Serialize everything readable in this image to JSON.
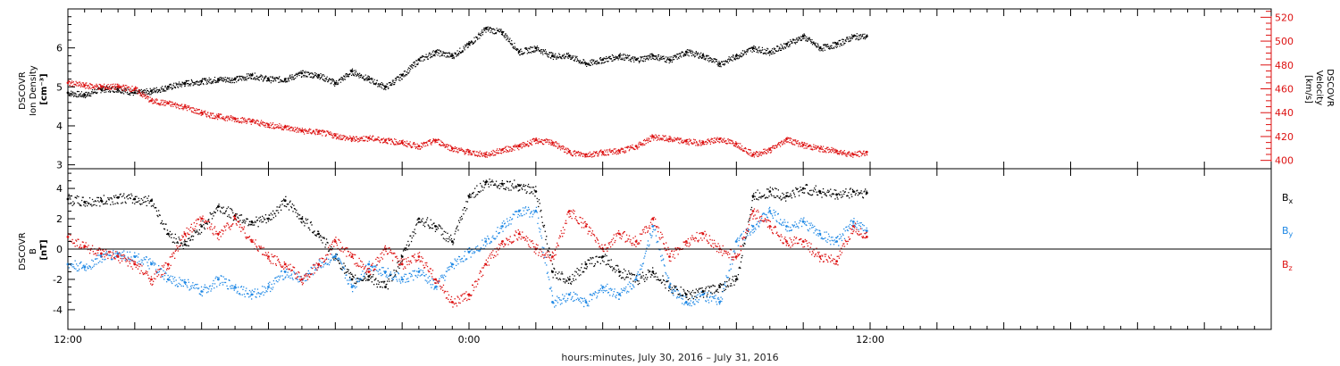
{
  "colors": {
    "black": "#000000",
    "red": "#dd1111",
    "blue": "#1e88e5",
    "frame": "#000000"
  },
  "xaxis": {
    "label": "hours:minutes, July 30, 2016 – July 31, 2016",
    "range_hours": [
      12,
      48
    ],
    "tick_labels": [
      {
        "hour": 12,
        "text": "12:00"
      },
      {
        "hour": 24,
        "text": "0:00"
      },
      {
        "hour": 36,
        "text": "12:00"
      }
    ],
    "major_step_hours": 2,
    "data_end_hour": 36
  },
  "panel_top": {
    "left_label": [
      "DSCOVR",
      "Ion Density",
      "[cm⁻³]"
    ],
    "right_label": [
      "DSCOVR",
      "Velocity",
      "[km/s]"
    ]
  },
  "panel_bottom": {
    "left_label": [
      "DSCOVR",
      "B",
      "[nT]"
    ],
    "legend": [
      {
        "name": "Bx",
        "main": "B",
        "sub": "x",
        "color": "#000000"
      },
      {
        "name": "By",
        "main": "B",
        "sub": "y",
        "color": "#1e88e5"
      },
      {
        "name": "Bz",
        "main": "B",
        "sub": "z",
        "color": "#dd1111"
      }
    ]
  },
  "chart_data": [
    {
      "type": "scatter",
      "y_left": {
        "range": [
          2.9,
          7.0
        ],
        "ticks": [
          3,
          4,
          5,
          6
        ]
      },
      "y_right": {
        "range": [
          393,
          527
        ],
        "ticks": [
          400,
          420,
          440,
          460,
          480,
          500,
          520
        ]
      },
      "series": [
        {
          "axis": "left",
          "color": "#000000",
          "points": [
            [
              12.0,
              4.85
            ],
            [
              12.5,
              4.8
            ],
            [
              13.0,
              4.95
            ],
            [
              13.5,
              4.95
            ],
            [
              14.0,
              4.85
            ],
            [
              14.5,
              4.9
            ],
            [
              15.0,
              5.0
            ],
            [
              15.5,
              5.1
            ],
            [
              16.0,
              5.15
            ],
            [
              16.5,
              5.2
            ],
            [
              17.0,
              5.2
            ],
            [
              17.5,
              5.3
            ],
            [
              18.0,
              5.2
            ],
            [
              18.5,
              5.2
            ],
            [
              19.0,
              5.35
            ],
            [
              19.5,
              5.3
            ],
            [
              20.0,
              5.1
            ],
            [
              20.5,
              5.4
            ],
            [
              21.0,
              5.2
            ],
            [
              21.5,
              5.0
            ],
            [
              22.0,
              5.3
            ],
            [
              22.5,
              5.7
            ],
            [
              23.0,
              5.9
            ],
            [
              23.5,
              5.8
            ],
            [
              24.0,
              6.1
            ],
            [
              24.5,
              6.5
            ],
            [
              25.0,
              6.4
            ],
            [
              25.5,
              5.9
            ],
            [
              26.0,
              6.0
            ],
            [
              26.5,
              5.8
            ],
            [
              27.0,
              5.8
            ],
            [
              27.5,
              5.6
            ],
            [
              28.0,
              5.7
            ],
            [
              28.5,
              5.8
            ],
            [
              29.0,
              5.7
            ],
            [
              29.5,
              5.8
            ],
            [
              30.0,
              5.7
            ],
            [
              30.5,
              5.9
            ],
            [
              31.0,
              5.8
            ],
            [
              31.5,
              5.6
            ],
            [
              32.0,
              5.8
            ],
            [
              32.5,
              6.0
            ],
            [
              33.0,
              5.9
            ],
            [
              33.5,
              6.1
            ],
            [
              34.0,
              6.3
            ],
            [
              34.5,
              6.0
            ],
            [
              35.0,
              6.1
            ],
            [
              35.5,
              6.3
            ],
            [
              35.9,
              6.3
            ]
          ]
        },
        {
          "axis": "right",
          "color": "#dd1111",
          "points": [
            [
              12.0,
              465
            ],
            [
              12.5,
              463
            ],
            [
              13.0,
              462
            ],
            [
              13.5,
              462
            ],
            [
              14.0,
              460
            ],
            [
              14.5,
              450
            ],
            [
              15.0,
              448
            ],
            [
              15.5,
              445
            ],
            [
              16.0,
              440
            ],
            [
              16.5,
              437
            ],
            [
              17.0,
              435
            ],
            [
              17.5,
              433
            ],
            [
              18.0,
              430
            ],
            [
              18.5,
              428
            ],
            [
              19.0,
              425
            ],
            [
              19.5,
              424
            ],
            [
              20.0,
              421
            ],
            [
              20.5,
              418
            ],
            [
              21.0,
              419
            ],
            [
              21.5,
              417
            ],
            [
              22.0,
              415
            ],
            [
              22.5,
              412
            ],
            [
              23.0,
              417
            ],
            [
              23.5,
              410
            ],
            [
              24.0,
              407
            ],
            [
              24.5,
              405
            ],
            [
              25.0,
              409
            ],
            [
              25.5,
              412
            ],
            [
              26.0,
              417
            ],
            [
              26.5,
              415
            ],
            [
              27.0,
              407
            ],
            [
              27.5,
              405
            ],
            [
              28.0,
              407
            ],
            [
              28.5,
              408
            ],
            [
              29.0,
              412
            ],
            [
              29.5,
              420
            ],
            [
              30.0,
              418
            ],
            [
              30.5,
              416
            ],
            [
              31.0,
              415
            ],
            [
              31.5,
              418
            ],
            [
              32.0,
              414
            ],
            [
              32.5,
              405
            ],
            [
              33.0,
              409
            ],
            [
              33.5,
              418
            ],
            [
              34.0,
              413
            ],
            [
              34.5,
              410
            ],
            [
              35.0,
              408
            ],
            [
              35.5,
              405
            ],
            [
              35.9,
              407
            ]
          ]
        }
      ]
    },
    {
      "type": "scatter",
      "y": {
        "range": [
          -5.3,
          5.3
        ],
        "ticks": [
          -4,
          -2,
          0,
          2,
          4
        ]
      },
      "zero_line": true,
      "series": [
        {
          "name": "Bx",
          "color": "#000000",
          "points": [
            [
              12.0,
              3.3
            ],
            [
              12.5,
              3.1
            ],
            [
              13.0,
              3.2
            ],
            [
              13.5,
              3.4
            ],
            [
              14.0,
              3.3
            ],
            [
              14.5,
              3.2
            ],
            [
              15.0,
              1.0
            ],
            [
              15.5,
              0.3
            ],
            [
              16.0,
              1.5
            ],
            [
              16.5,
              2.8
            ],
            [
              17.0,
              2.2
            ],
            [
              17.5,
              1.8
            ],
            [
              18.0,
              2.0
            ],
            [
              18.5,
              3.2
            ],
            [
              19.0,
              2.0
            ],
            [
              19.5,
              1.0
            ],
            [
              20.0,
              -0.5
            ],
            [
              20.5,
              -2.0
            ],
            [
              21.0,
              -1.8
            ],
            [
              21.5,
              -2.5
            ],
            [
              22.0,
              -0.5
            ],
            [
              22.5,
              2.0
            ],
            [
              23.0,
              1.5
            ],
            [
              23.5,
              0.5
            ],
            [
              24.0,
              3.5
            ],
            [
              24.5,
              4.4
            ],
            [
              25.0,
              4.3
            ],
            [
              25.5,
              4.2
            ],
            [
              26.0,
              3.8
            ],
            [
              26.5,
              -1.5
            ],
            [
              27.0,
              -2.0
            ],
            [
              27.5,
              -1.0
            ],
            [
              28.0,
              -0.5
            ],
            [
              28.5,
              -1.5
            ],
            [
              29.0,
              -2.0
            ],
            [
              29.5,
              -1.5
            ],
            [
              30.0,
              -2.5
            ],
            [
              30.5,
              -3.0
            ],
            [
              31.0,
              -2.8
            ],
            [
              31.5,
              -2.5
            ],
            [
              32.0,
              -2.0
            ],
            [
              32.5,
              3.5
            ],
            [
              33.0,
              3.8
            ],
            [
              33.5,
              3.5
            ],
            [
              34.0,
              4.0
            ],
            [
              34.5,
              3.8
            ],
            [
              35.0,
              3.6
            ],
            [
              35.5,
              3.8
            ],
            [
              35.9,
              3.7
            ]
          ]
        },
        {
          "name": "By",
          "color": "#1e88e5",
          "points": [
            [
              12.0,
              -1.0
            ],
            [
              12.5,
              -1.2
            ],
            [
              13.0,
              -0.5
            ],
            [
              13.5,
              -0.3
            ],
            [
              14.0,
              -0.5
            ],
            [
              14.5,
              -1.0
            ],
            [
              15.0,
              -2.0
            ],
            [
              15.5,
              -2.2
            ],
            [
              16.0,
              -2.8
            ],
            [
              16.5,
              -2.0
            ],
            [
              17.0,
              -2.5
            ],
            [
              17.5,
              -3.0
            ],
            [
              18.0,
              -2.5
            ],
            [
              18.5,
              -1.5
            ],
            [
              19.0,
              -2.0
            ],
            [
              19.5,
              -1.0
            ],
            [
              20.0,
              -0.5
            ],
            [
              20.5,
              -2.5
            ],
            [
              21.0,
              -1.0
            ],
            [
              21.5,
              -1.5
            ],
            [
              22.0,
              -2.0
            ],
            [
              22.5,
              -1.5
            ],
            [
              23.0,
              -2.5
            ],
            [
              23.5,
              -1.0
            ],
            [
              24.0,
              -0.2
            ],
            [
              24.5,
              0.5
            ],
            [
              25.0,
              1.5
            ],
            [
              25.5,
              2.5
            ],
            [
              26.0,
              2.5
            ],
            [
              26.5,
              -3.5
            ],
            [
              27.0,
              -3.0
            ],
            [
              27.5,
              -3.5
            ],
            [
              28.0,
              -2.5
            ],
            [
              28.5,
              -3.0
            ],
            [
              29.0,
              -2.0
            ],
            [
              29.5,
              1.5
            ],
            [
              30.0,
              -2.5
            ],
            [
              30.5,
              -3.5
            ],
            [
              31.0,
              -3.0
            ],
            [
              31.5,
              -3.5
            ],
            [
              32.0,
              0.5
            ],
            [
              32.5,
              1.5
            ],
            [
              33.0,
              2.5
            ],
            [
              33.5,
              1.5
            ],
            [
              34.0,
              1.8
            ],
            [
              34.5,
              1.0
            ],
            [
              35.0,
              0.5
            ],
            [
              35.5,
              1.8
            ],
            [
              35.9,
              1.2
            ]
          ]
        },
        {
          "name": "Bz",
          "color": "#dd1111",
          "points": [
            [
              12.0,
              0.8
            ],
            [
              12.5,
              0.2
            ],
            [
              13.0,
              -0.3
            ],
            [
              13.5,
              -0.5
            ],
            [
              14.0,
              -1.0
            ],
            [
              14.5,
              -2.0
            ],
            [
              15.0,
              -1.0
            ],
            [
              15.5,
              1.0
            ],
            [
              16.0,
              2.0
            ],
            [
              16.5,
              1.0
            ],
            [
              17.0,
              2.0
            ],
            [
              17.5,
              0.5
            ],
            [
              18.0,
              -0.5
            ],
            [
              18.5,
              -1.0
            ],
            [
              19.0,
              -2.0
            ],
            [
              19.5,
              -1.0
            ],
            [
              20.0,
              0.5
            ],
            [
              20.5,
              -0.5
            ],
            [
              21.0,
              -1.5
            ],
            [
              21.5,
              0.0
            ],
            [
              22.0,
              -1.0
            ],
            [
              22.5,
              -0.5
            ],
            [
              23.0,
              -2.0
            ],
            [
              23.5,
              -3.5
            ],
            [
              24.0,
              -3.0
            ],
            [
              24.5,
              -1.0
            ],
            [
              25.0,
              0.5
            ],
            [
              25.5,
              1.0
            ],
            [
              26.0,
              0.0
            ],
            [
              26.5,
              -0.5
            ],
            [
              27.0,
              2.5
            ],
            [
              27.5,
              1.5
            ],
            [
              28.0,
              0.0
            ],
            [
              28.5,
              1.0
            ],
            [
              29.0,
              0.5
            ],
            [
              29.5,
              2.0
            ],
            [
              30.0,
              -0.5
            ],
            [
              30.5,
              0.5
            ],
            [
              31.0,
              1.0
            ],
            [
              31.5,
              0.0
            ],
            [
              32.0,
              -0.5
            ],
            [
              32.5,
              2.5
            ],
            [
              33.0,
              1.5
            ],
            [
              33.5,
              0.5
            ],
            [
              34.0,
              0.5
            ],
            [
              34.5,
              -0.5
            ],
            [
              35.0,
              -0.8
            ],
            [
              35.5,
              1.5
            ],
            [
              35.9,
              0.8
            ]
          ]
        }
      ]
    }
  ]
}
